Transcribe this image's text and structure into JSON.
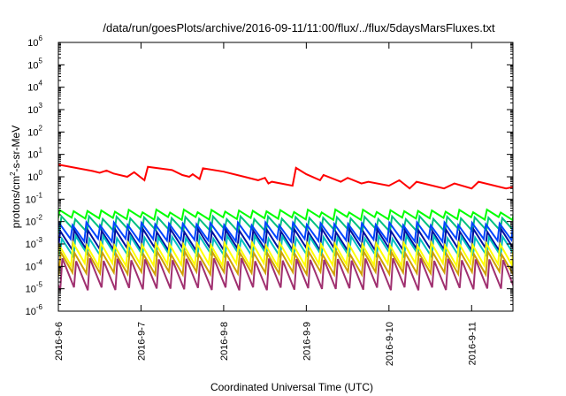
{
  "chart_data": {
    "type": "line",
    "title": "/data/run/goesPlots/archive/2016-09-11/11:00/flux/../flux/5daysMarsFluxes.txt",
    "xlabel": "Coordinated Universal Time (UTC)",
    "ylabel": {
      "prefix": "protons/cm",
      "sup": "2",
      "suffix": "-s-sr-MeV"
    },
    "yscale": "log",
    "ylim": [
      1e-06,
      1000000.0
    ],
    "y_ticks": [
      {
        "base": "10",
        "exp": "-6",
        "value": 1e-06
      },
      {
        "base": "10",
        "exp": "-5",
        "value": 1e-05
      },
      {
        "base": "10",
        "exp": "-4",
        "value": 0.0001
      },
      {
        "base": "10",
        "exp": "-3",
        "value": 0.001
      },
      {
        "base": "10",
        "exp": "-2",
        "value": 0.01
      },
      {
        "base": "10",
        "exp": "-1",
        "value": 0.1
      },
      {
        "base": "10",
        "exp": "0",
        "value": 1
      },
      {
        "base": "10",
        "exp": "1",
        "value": 10
      },
      {
        "base": "10",
        "exp": "2",
        "value": 100
      },
      {
        "base": "10",
        "exp": "3",
        "value": 1000
      },
      {
        "base": "10",
        "exp": "4",
        "value": 10000
      },
      {
        "base": "10",
        "exp": "5",
        "value": 100000
      },
      {
        "base": "10",
        "exp": "6",
        "value": 1000000
      }
    ],
    "xlim": [
      "2016-09-06T00:00",
      "2016-09-11T12:00"
    ],
    "x_ticks": [
      {
        "label": "2016-9-6",
        "value": "2016-09-06T00:00"
      },
      {
        "label": "2016-9-7",
        "value": "2016-09-07T00:00"
      },
      {
        "label": "2016-9-8",
        "value": "2016-09-08T00:00"
      },
      {
        "label": "2016-9-9",
        "value": "2016-09-09T00:00"
      },
      {
        "label": "2016-9-10",
        "value": "2016-09-10T00:00"
      },
      {
        "label": "2016-9-11",
        "value": "2016-09-11T00:00"
      }
    ],
    "grid": false,
    "legend": "none",
    "series": [
      {
        "color": "#ff0000",
        "points": [
          [
            "2016-09-06T00:00",
            3.5
          ],
          [
            "2016-09-06T10:00",
            1.8
          ],
          [
            "2016-09-06T12:00",
            1.5
          ],
          [
            "2016-09-06T14:00",
            1.9
          ],
          [
            "2016-09-06T16:00",
            1.4
          ],
          [
            "2016-09-06T20:00",
            1.0
          ],
          [
            "2016-09-06T22:00",
            1.6
          ],
          [
            "2016-09-07T01:00",
            0.7
          ],
          [
            "2016-09-07T02:00",
            2.8
          ],
          [
            "2016-09-07T09:00",
            2.0
          ],
          [
            "2016-09-07T12:00",
            1.2
          ],
          [
            "2016-09-07T14:00",
            1.0
          ],
          [
            "2016-09-07T15:00",
            1.3
          ],
          [
            "2016-09-07T17:00",
            0.8
          ],
          [
            "2016-09-07T18:00",
            2.4
          ],
          [
            "2016-09-08T00:00",
            1.7
          ],
          [
            "2016-09-08T06:00",
            1.0
          ],
          [
            "2016-09-08T10:00",
            0.7
          ],
          [
            "2016-09-08T12:00",
            0.9
          ],
          [
            "2016-09-08T13:00",
            0.5
          ],
          [
            "2016-09-08T14:00",
            0.6
          ],
          [
            "2016-09-08T20:00",
            0.4
          ],
          [
            "2016-09-08T21:00",
            2.5
          ],
          [
            "2016-09-09T00:00",
            1.3
          ],
          [
            "2016-09-09T04:00",
            0.7
          ],
          [
            "2016-09-09T05:00",
            1.2
          ],
          [
            "2016-09-09T10:00",
            0.6
          ],
          [
            "2016-09-09T12:00",
            0.9
          ],
          [
            "2016-09-09T16:00",
            0.5
          ],
          [
            "2016-09-09T18:00",
            0.6
          ],
          [
            "2016-09-10T00:00",
            0.4
          ],
          [
            "2016-09-10T03:00",
            0.7
          ],
          [
            "2016-09-10T06:00",
            0.3
          ],
          [
            "2016-09-10T08:00",
            0.6
          ],
          [
            "2016-09-10T16:00",
            0.3
          ],
          [
            "2016-09-10T19:00",
            0.5
          ],
          [
            "2016-09-11T00:00",
            0.3
          ],
          [
            "2016-09-11T02:00",
            0.6
          ],
          [
            "2016-09-11T10:00",
            0.3
          ],
          [
            "2016-09-11T12:00",
            0.35
          ]
        ]
      },
      {
        "color": "#00ff00",
        "sawtooth": {
          "period_hours": 4,
          "peak": 0.03,
          "trough": 0.014
        }
      },
      {
        "color": "#00c080",
        "sawtooth": {
          "period_hours": 4,
          "peak": 0.015,
          "trough": 0.004
        }
      },
      {
        "color": "#0044ff",
        "sawtooth": {
          "period_hours": 4,
          "peak": 0.008,
          "trough": 0.0015
        }
      },
      {
        "color": "#0010a0",
        "sawtooth": {
          "period_hours": 4,
          "peak": 0.004,
          "trough": 0.0006
        }
      },
      {
        "color": "#00c0c0",
        "sawtooth": {
          "period_hours": 4,
          "peak": 0.002,
          "trough": 0.0003
        }
      },
      {
        "color": "#ffff00",
        "sawtooth": {
          "period_hours": 4,
          "peak": 0.001,
          "trough": 0.00012
        }
      },
      {
        "color": "#d0a000",
        "sawtooth": {
          "period_hours": 4,
          "peak": 0.0004,
          "trough": 5e-05
        }
      },
      {
        "color": "#a03070",
        "sawtooth": {
          "period_hours": 4,
          "peak": 0.0002,
          "trough": 1e-05
        }
      }
    ]
  }
}
